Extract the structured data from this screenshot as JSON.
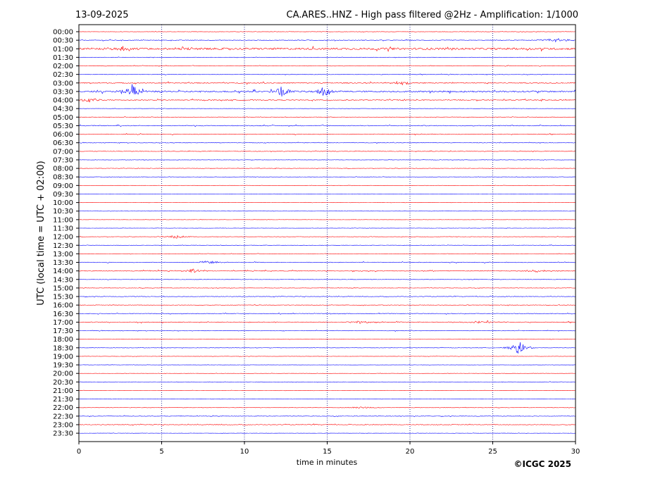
{
  "header": {
    "date": "13-09-2025",
    "title": "CA.ARES..HNZ - High pass filtered @2Hz - Amplification: 1/1000"
  },
  "copyright": "©ICGC 2025",
  "colors": {
    "even_rows": "#ff0000",
    "odd_rows": "#0000ff",
    "grid": "#000080",
    "frame": "#000000"
  },
  "chart_data": {
    "type": "line",
    "title": "CA.ARES..HNZ - High pass filtered @2Hz - Amplification: 1/1000",
    "xlabel": "time in minutes",
    "ylabel": "UTC (local time = UTC + 02:00)",
    "xlim": [
      0,
      30
    ],
    "x_ticks": [
      "0",
      "5",
      "10",
      "15",
      "20",
      "25",
      "30"
    ],
    "grid": "vertical dotted at 5-minute intervals",
    "rows": [
      "00:00",
      "00:30",
      "01:00",
      "01:30",
      "02:00",
      "02:30",
      "03:00",
      "03:30",
      "04:00",
      "04:30",
      "05:00",
      "05:30",
      "06:00",
      "06:30",
      "07:00",
      "07:30",
      "08:00",
      "08:30",
      "09:00",
      "09:30",
      "10:00",
      "10:30",
      "11:00",
      "11:30",
      "12:00",
      "12:30",
      "13:00",
      "13:30",
      "14:00",
      "14:30",
      "15:00",
      "15:30",
      "16:00",
      "16:30",
      "17:00",
      "17:30",
      "18:00",
      "18:30",
      "19:00",
      "19:30",
      "20:00",
      "20:30",
      "21:00",
      "21:30",
      "22:00",
      "22:30",
      "23:00",
      "23:30"
    ],
    "noise_level": [
      0.3,
      0.5,
      1.6,
      0.3,
      0.4,
      0.4,
      0.8,
      1.2,
      0.7,
      0.2,
      0.4,
      0.6,
      0.5,
      0.4,
      0.4,
      0.3,
      0.3,
      0.3,
      0.2,
      0.2,
      0.2,
      0.2,
      0.2,
      0.2,
      0.3,
      0.3,
      0.3,
      0.5,
      0.6,
      0.3,
      0.3,
      0.4,
      0.4,
      0.5,
      0.6,
      0.4,
      0.2,
      0.3,
      0.2,
      0.2,
      0.2,
      0.3,
      0.2,
      0.2,
      0.3,
      0.4,
      0.5,
      0.2
    ],
    "events": [
      {
        "row": "00:30",
        "minute": 28.9,
        "amplitude": 3
      },
      {
        "row": "01:00",
        "minute": 2.5,
        "amplitude": 2
      },
      {
        "row": "01:00",
        "minute": 6.2,
        "amplitude": 2
      },
      {
        "row": "03:00",
        "minute": 19.5,
        "amplitude": 2.5
      },
      {
        "row": "03:30",
        "minute": 3.2,
        "amplitude": 12
      },
      {
        "row": "03:30",
        "minute": 12.3,
        "amplitude": 9
      },
      {
        "row": "03:30",
        "minute": 14.8,
        "amplitude": 8
      },
      {
        "row": "04:00",
        "minute": 0.6,
        "amplitude": 3
      },
      {
        "row": "12:00",
        "minute": 5.9,
        "amplitude": 2.5
      },
      {
        "row": "13:30",
        "minute": 7.8,
        "amplitude": 2.5
      },
      {
        "row": "14:00",
        "minute": 6.9,
        "amplitude": 2.5
      },
      {
        "row": "14:00",
        "minute": 27.6,
        "amplitude": 2
      },
      {
        "row": "17:00",
        "minute": 17.2,
        "amplitude": 2.5
      },
      {
        "row": "17:00",
        "minute": 24.3,
        "amplitude": 2
      },
      {
        "row": "18:30",
        "minute": 26.6,
        "amplitude": 10
      },
      {
        "row": "22:00",
        "minute": 17.1,
        "amplitude": 2
      }
    ]
  }
}
